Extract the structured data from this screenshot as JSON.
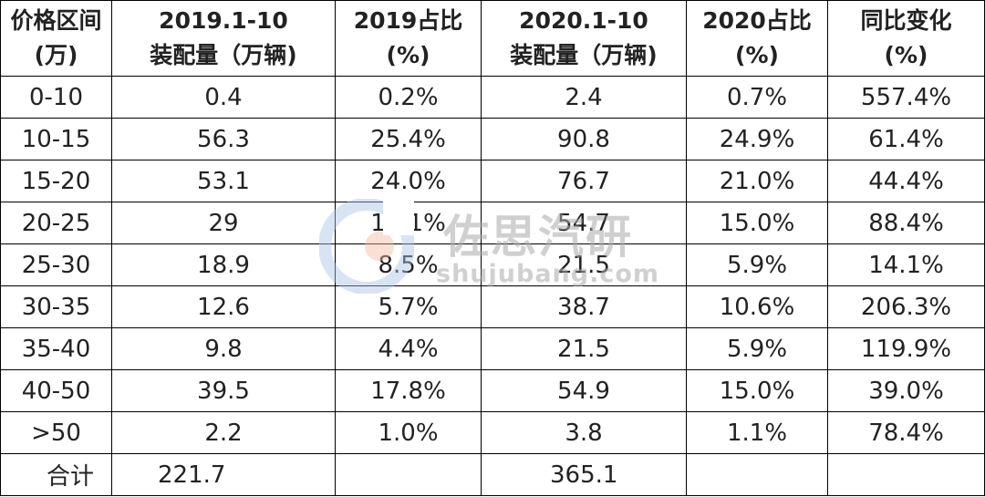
{
  "chart_data": {
    "type": "table",
    "columns": [
      {
        "line1": "价格区间",
        "line2": "(万)"
      },
      {
        "line1": "2019.1-10",
        "line2": "装配量（万辆)"
      },
      {
        "line1": "2019占比",
        "line2": "(%)"
      },
      {
        "line1": "2020.1-10",
        "line2": "装配量（万辆)"
      },
      {
        "line1": "2020占比",
        "line2": "(%)"
      },
      {
        "line1": "同比变化",
        "line2": "(%)"
      }
    ],
    "rows": [
      [
        "0-10",
        "0.4",
        "0.2%",
        "2.4",
        "0.7%",
        "557.4%"
      ],
      [
        "10-15",
        "56.3",
        "25.4%",
        "90.8",
        "24.9%",
        "61.4%"
      ],
      [
        "15-20",
        "53.1",
        "24.0%",
        "76.7",
        "21.0%",
        "44.4%"
      ],
      [
        "20-25",
        "29",
        "13.1%",
        "54.7",
        "15.0%",
        "88.4%"
      ],
      [
        "25-30",
        "18.9",
        "8.5%",
        "21.5",
        "5.9%",
        "14.1%"
      ],
      [
        "30-35",
        "12.6",
        "5.7%",
        "38.7",
        "10.6%",
        "206.3%"
      ],
      [
        "35-40",
        "9.8",
        "4.4%",
        "21.5",
        "5.9%",
        "119.9%"
      ],
      [
        "40-50",
        "39.5",
        "17.8%",
        "54.9",
        "15.0%",
        "39.0%"
      ],
      [
        ">50",
        "2.2",
        "1.0%",
        "3.8",
        "1.1%",
        "78.4%"
      ]
    ],
    "total": {
      "label": "合计",
      "vol_2019": "221.7",
      "vol_2020": "365.1"
    }
  },
  "watermark": {
    "name": "佐思汽研",
    "site": "shujubang.com",
    "logo_color_outer": "#a9c4e6",
    "logo_color_inner": "#f2b8a0"
  },
  "colors": {
    "text": "#222222",
    "border": "#000000",
    "background": "#ffffff"
  }
}
